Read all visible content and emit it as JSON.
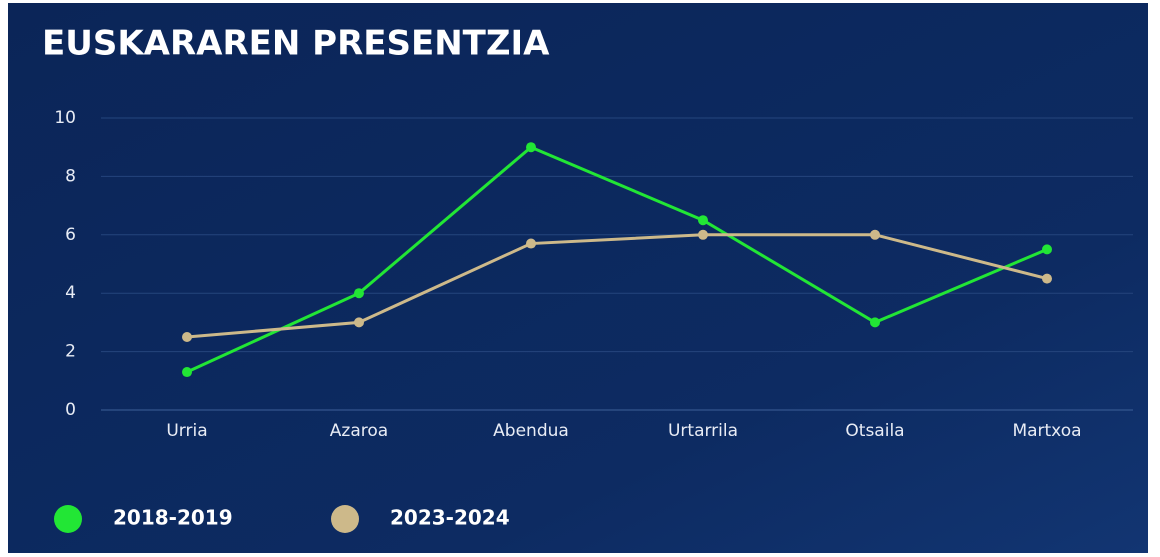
{
  "chart_data": {
    "type": "line",
    "title": "EUSKARAREN PRESENTZIA",
    "categories": [
      "Urria",
      "Azaroa",
      "Abendua",
      "Urtarrila",
      "Otsaila",
      "Martxoa"
    ],
    "series": [
      {
        "name": "2018-2019",
        "color": "#22e635",
        "values": [
          1.3,
          4,
          9,
          6.5,
          3,
          5.5
        ]
      },
      {
        "name": "2023-2024",
        "color": "#cdb98a",
        "values": [
          2.5,
          3,
          5.7,
          6,
          6,
          4.5
        ]
      }
    ],
    "ylim": [
      0,
      10
    ],
    "yticks": [
      0,
      2,
      4,
      6,
      8,
      10
    ],
    "grid": true,
    "legend": "bottom-left"
  }
}
